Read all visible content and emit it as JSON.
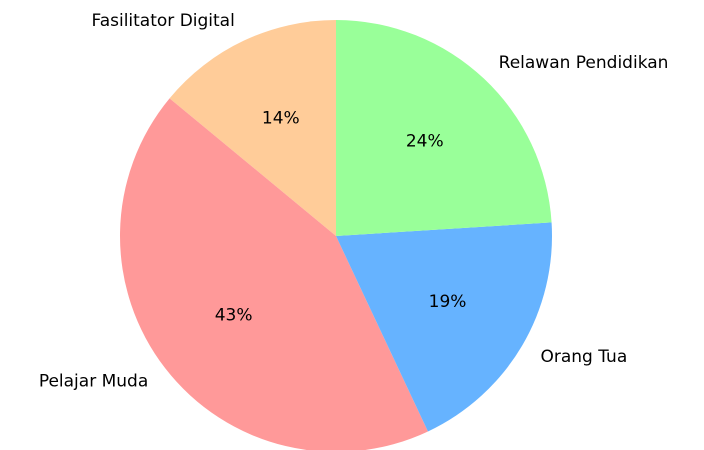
{
  "chart_data": {
    "type": "pie",
    "categories": [
      "Fasilitator Digital",
      "Pelajar Muda",
      "Orang Tua",
      "Relawan Pendidikan"
    ],
    "values": [
      14,
      43,
      19,
      24
    ],
    "value_labels": [
      "14%",
      "43%",
      "19%",
      "24%"
    ],
    "colors": [
      "#ffcc99",
      "#ff9999",
      "#66b3ff",
      "#99ff99"
    ]
  }
}
